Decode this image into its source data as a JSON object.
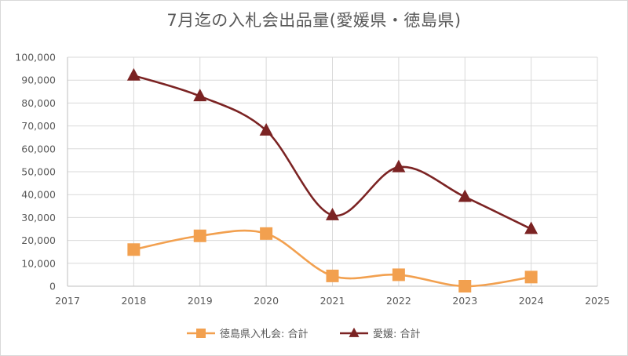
{
  "chart_data": {
    "type": "line",
    "title": "7月迄の入札会出品量(愛媛県・徳島県)",
    "xlim": [
      2017,
      2025
    ],
    "ylim": [
      0,
      100000
    ],
    "x_ticks": [
      "2017",
      "2018",
      "2019",
      "2020",
      "2021",
      "2022",
      "2023",
      "2024",
      "2025"
    ],
    "y_ticks": [
      "0",
      "10,000",
      "20,000",
      "30,000",
      "40,000",
      "50,000",
      "60,000",
      "70,000",
      "80,000",
      "90,000",
      "100,000"
    ],
    "grid": true,
    "smooth": true,
    "legend_position": "bottom",
    "series": [
      {
        "name": "徳島県入札会: 合計",
        "color": "#f2a04f",
        "marker": "square",
        "x": [
          2018,
          2019,
          2020,
          2021,
          2022,
          2023,
          2024
        ],
        "y": [
          16000,
          22000,
          23000,
          4500,
          5000,
          0,
          4000
        ]
      },
      {
        "name": "愛媛: 合計",
        "color": "#7b2323",
        "marker": "triangle",
        "x": [
          2018,
          2019,
          2020,
          2021,
          2022,
          2023,
          2024
        ],
        "y": [
          92000,
          83000,
          68000,
          31000,
          52000,
          39000,
          25000
        ]
      }
    ]
  }
}
